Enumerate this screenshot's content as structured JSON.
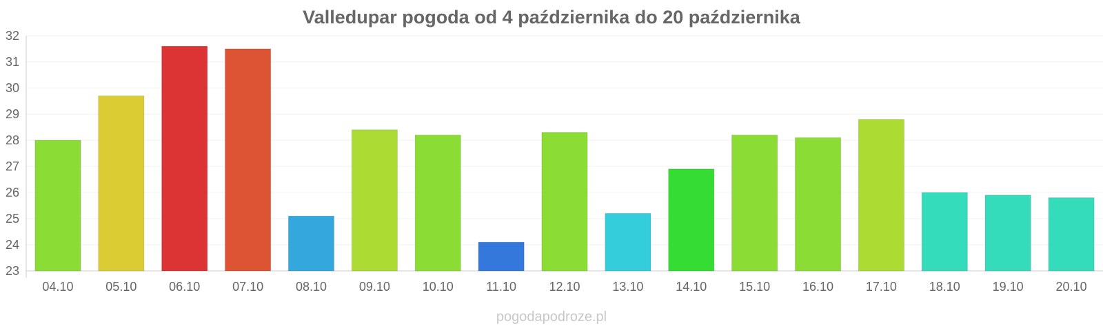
{
  "title": "Valledupar pogoda od 4 października do 20 października",
  "watermark": "pogodapodroze.pl",
  "chart_data": {
    "type": "bar",
    "categories": [
      "04.10",
      "05.10",
      "06.10",
      "07.10",
      "08.10",
      "09.10",
      "10.10",
      "11.10",
      "12.10",
      "13.10",
      "14.10",
      "15.10",
      "16.10",
      "17.10",
      "18.10",
      "19.10",
      "20.10"
    ],
    "values": [
      28.0,
      29.7,
      31.6,
      31.5,
      25.1,
      28.4,
      28.2,
      24.1,
      28.3,
      25.2,
      26.9,
      28.2,
      28.1,
      28.8,
      26.0,
      25.9,
      25.8
    ],
    "colors": [
      "#8bdc34",
      "#dccc34",
      "#dc3434",
      "#dc5434",
      "#34a8dc",
      "#acdc34",
      "#8bdc34",
      "#3478dc",
      "#8bdc34",
      "#34cddc",
      "#34dc34",
      "#8bdc34",
      "#8bdc34",
      "#acdc34",
      "#34dcbb",
      "#34dcbb",
      "#34dcbb"
    ],
    "yticks": [
      "23",
      "24",
      "25",
      "26",
      "27",
      "28",
      "29",
      "30",
      "31",
      "32"
    ],
    "ylim": [
      23,
      32
    ],
    "grid": true,
    "legend": "none"
  }
}
